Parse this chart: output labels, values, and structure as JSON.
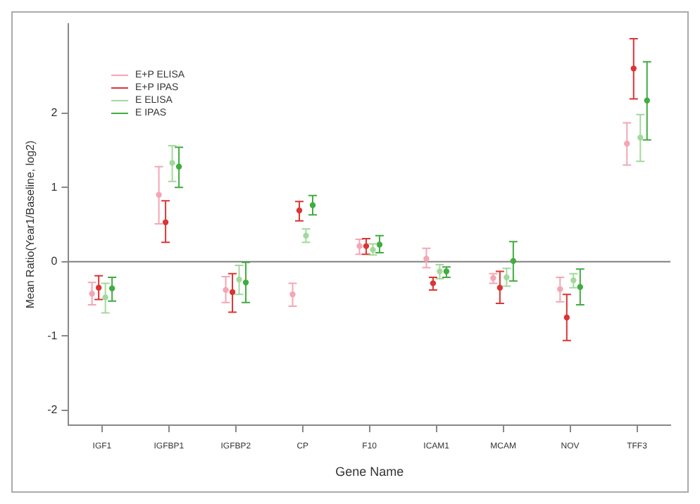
{
  "chart_data": {
    "type": "scatter",
    "xlabel": "Gene Name",
    "ylabel": "Mean Ratio(Year1/Baseline, log2)",
    "categories": [
      "IGF1",
      "IGFBP1",
      "IGFBP2",
      "CP",
      "F10",
      "ICAM1",
      "MCAM",
      "NOV",
      "TFF3"
    ],
    "ylim": [
      -2.2,
      3.2
    ],
    "yticks": [
      -2,
      -1,
      0,
      1,
      2
    ],
    "grid": false,
    "legend": "top left",
    "marker": "circle",
    "ref_lines": [
      {
        "axis": "y",
        "value": 0,
        "color": "#808080"
      }
    ],
    "series": [
      {
        "name": "E+P ELISA",
        "color": "#f4a6b4",
        "values": [
          -0.43,
          0.9,
          -0.38,
          -0.44,
          0.21,
          0.04,
          -0.22,
          -0.37,
          1.59
        ],
        "errors": [
          [
            -0.58,
            -0.28
          ],
          [
            0.51,
            1.28
          ],
          [
            -0.55,
            -0.2
          ],
          [
            -0.6,
            -0.29
          ],
          [
            0.1,
            0.3
          ],
          [
            -0.08,
            0.18
          ],
          [
            -0.29,
            -0.16
          ],
          [
            -0.54,
            -0.21
          ],
          [
            1.3,
            1.87
          ]
        ]
      },
      {
        "name": "E+P IPAS",
        "color": "#dc3535",
        "values": [
          -0.35,
          0.53,
          -0.41,
          0.69,
          0.21,
          -0.29,
          -0.35,
          -0.75,
          2.6
        ],
        "errors": [
          [
            -0.51,
            -0.19
          ],
          [
            0.26,
            0.82
          ],
          [
            -0.68,
            -0.16
          ],
          [
            0.55,
            0.81
          ],
          [
            0.1,
            0.31
          ],
          [
            -0.38,
            -0.21
          ],
          [
            -0.56,
            -0.13
          ],
          [
            -1.06,
            -0.44
          ],
          [
            2.19,
            3.0
          ]
        ]
      },
      {
        "name": "E ELISA",
        "color": "#a3d99c",
        "values": [
          -0.48,
          1.33,
          -0.24,
          0.35,
          0.16,
          -0.13,
          -0.21,
          -0.25,
          1.67
        ],
        "errors": [
          [
            -0.69,
            -0.29
          ],
          [
            1.08,
            1.56
          ],
          [
            -0.44,
            -0.05
          ],
          [
            0.26,
            0.44
          ],
          [
            0.09,
            0.24
          ],
          [
            -0.23,
            -0.04
          ],
          [
            -0.33,
            -0.09
          ],
          [
            -0.35,
            -0.16
          ],
          [
            1.35,
            1.98
          ]
        ]
      },
      {
        "name": "E IPAS",
        "color": "#40ad40",
        "values": [
          -0.36,
          1.28,
          -0.28,
          0.76,
          0.23,
          -0.13,
          0.01,
          -0.34,
          2.17
        ],
        "errors": [
          [
            -0.53,
            -0.21
          ],
          [
            1.0,
            1.54
          ],
          [
            -0.55,
            -0.01
          ],
          [
            0.63,
            0.89
          ],
          [
            0.12,
            0.35
          ],
          [
            -0.21,
            -0.07
          ],
          [
            -0.26,
            0.27
          ],
          [
            -0.58,
            -0.1
          ],
          [
            1.64,
            2.69
          ]
        ]
      }
    ]
  }
}
